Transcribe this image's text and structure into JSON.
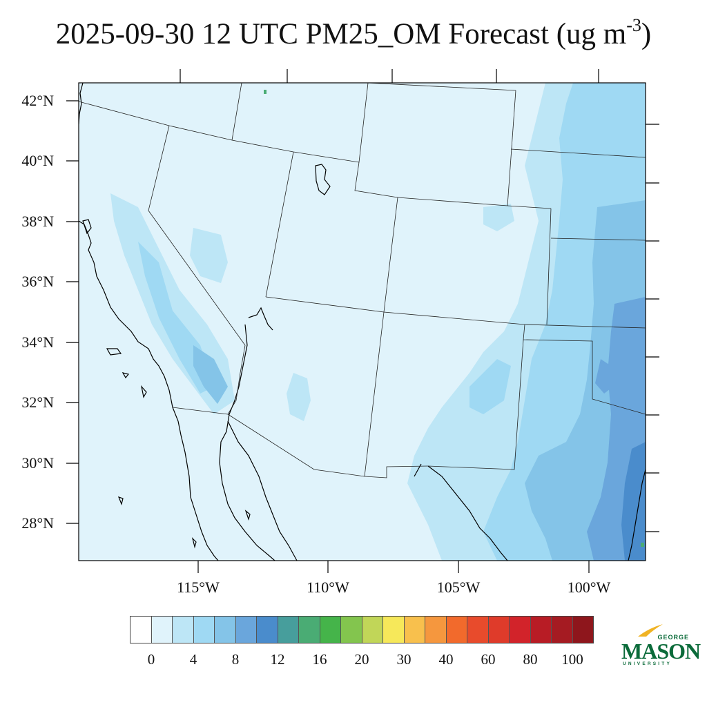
{
  "title": {
    "main": "2025-09-30 12 UTC PM25_OM Forecast (ug m",
    "exponent": "-3",
    "close": ")"
  },
  "map": {
    "lat_labels": [
      "42°N",
      "40°N",
      "38°N",
      "36°N",
      "34°N",
      "32°N",
      "30°N",
      "28°N"
    ],
    "lon_labels": [
      "115°W",
      "110°W",
      "105°W",
      "100°W"
    ],
    "background_color": "#e0f3fb"
  },
  "colorbar": {
    "colors": [
      "#ffffff",
      "#e0f3fb",
      "#bde6f6",
      "#9fd9f3",
      "#84c4e8",
      "#6aa6dc",
      "#4a8ccc",
      "#479e9c",
      "#4aac74",
      "#45b44a",
      "#83c54e",
      "#c1d658",
      "#f6e85a",
      "#f8c04d",
      "#f5973e",
      "#f26a2c",
      "#e84b2c",
      "#df3b2a",
      "#d2232a",
      "#b81c25",
      "#a51b22",
      "#8e161c"
    ],
    "labels": [
      "0",
      "4",
      "8",
      "12",
      "16",
      "20",
      "30",
      "40",
      "60",
      "80",
      "100"
    ]
  },
  "logo": {
    "line1": "GEORGE",
    "line2": "MASON",
    "line3": "UNIVERSITY"
  }
}
